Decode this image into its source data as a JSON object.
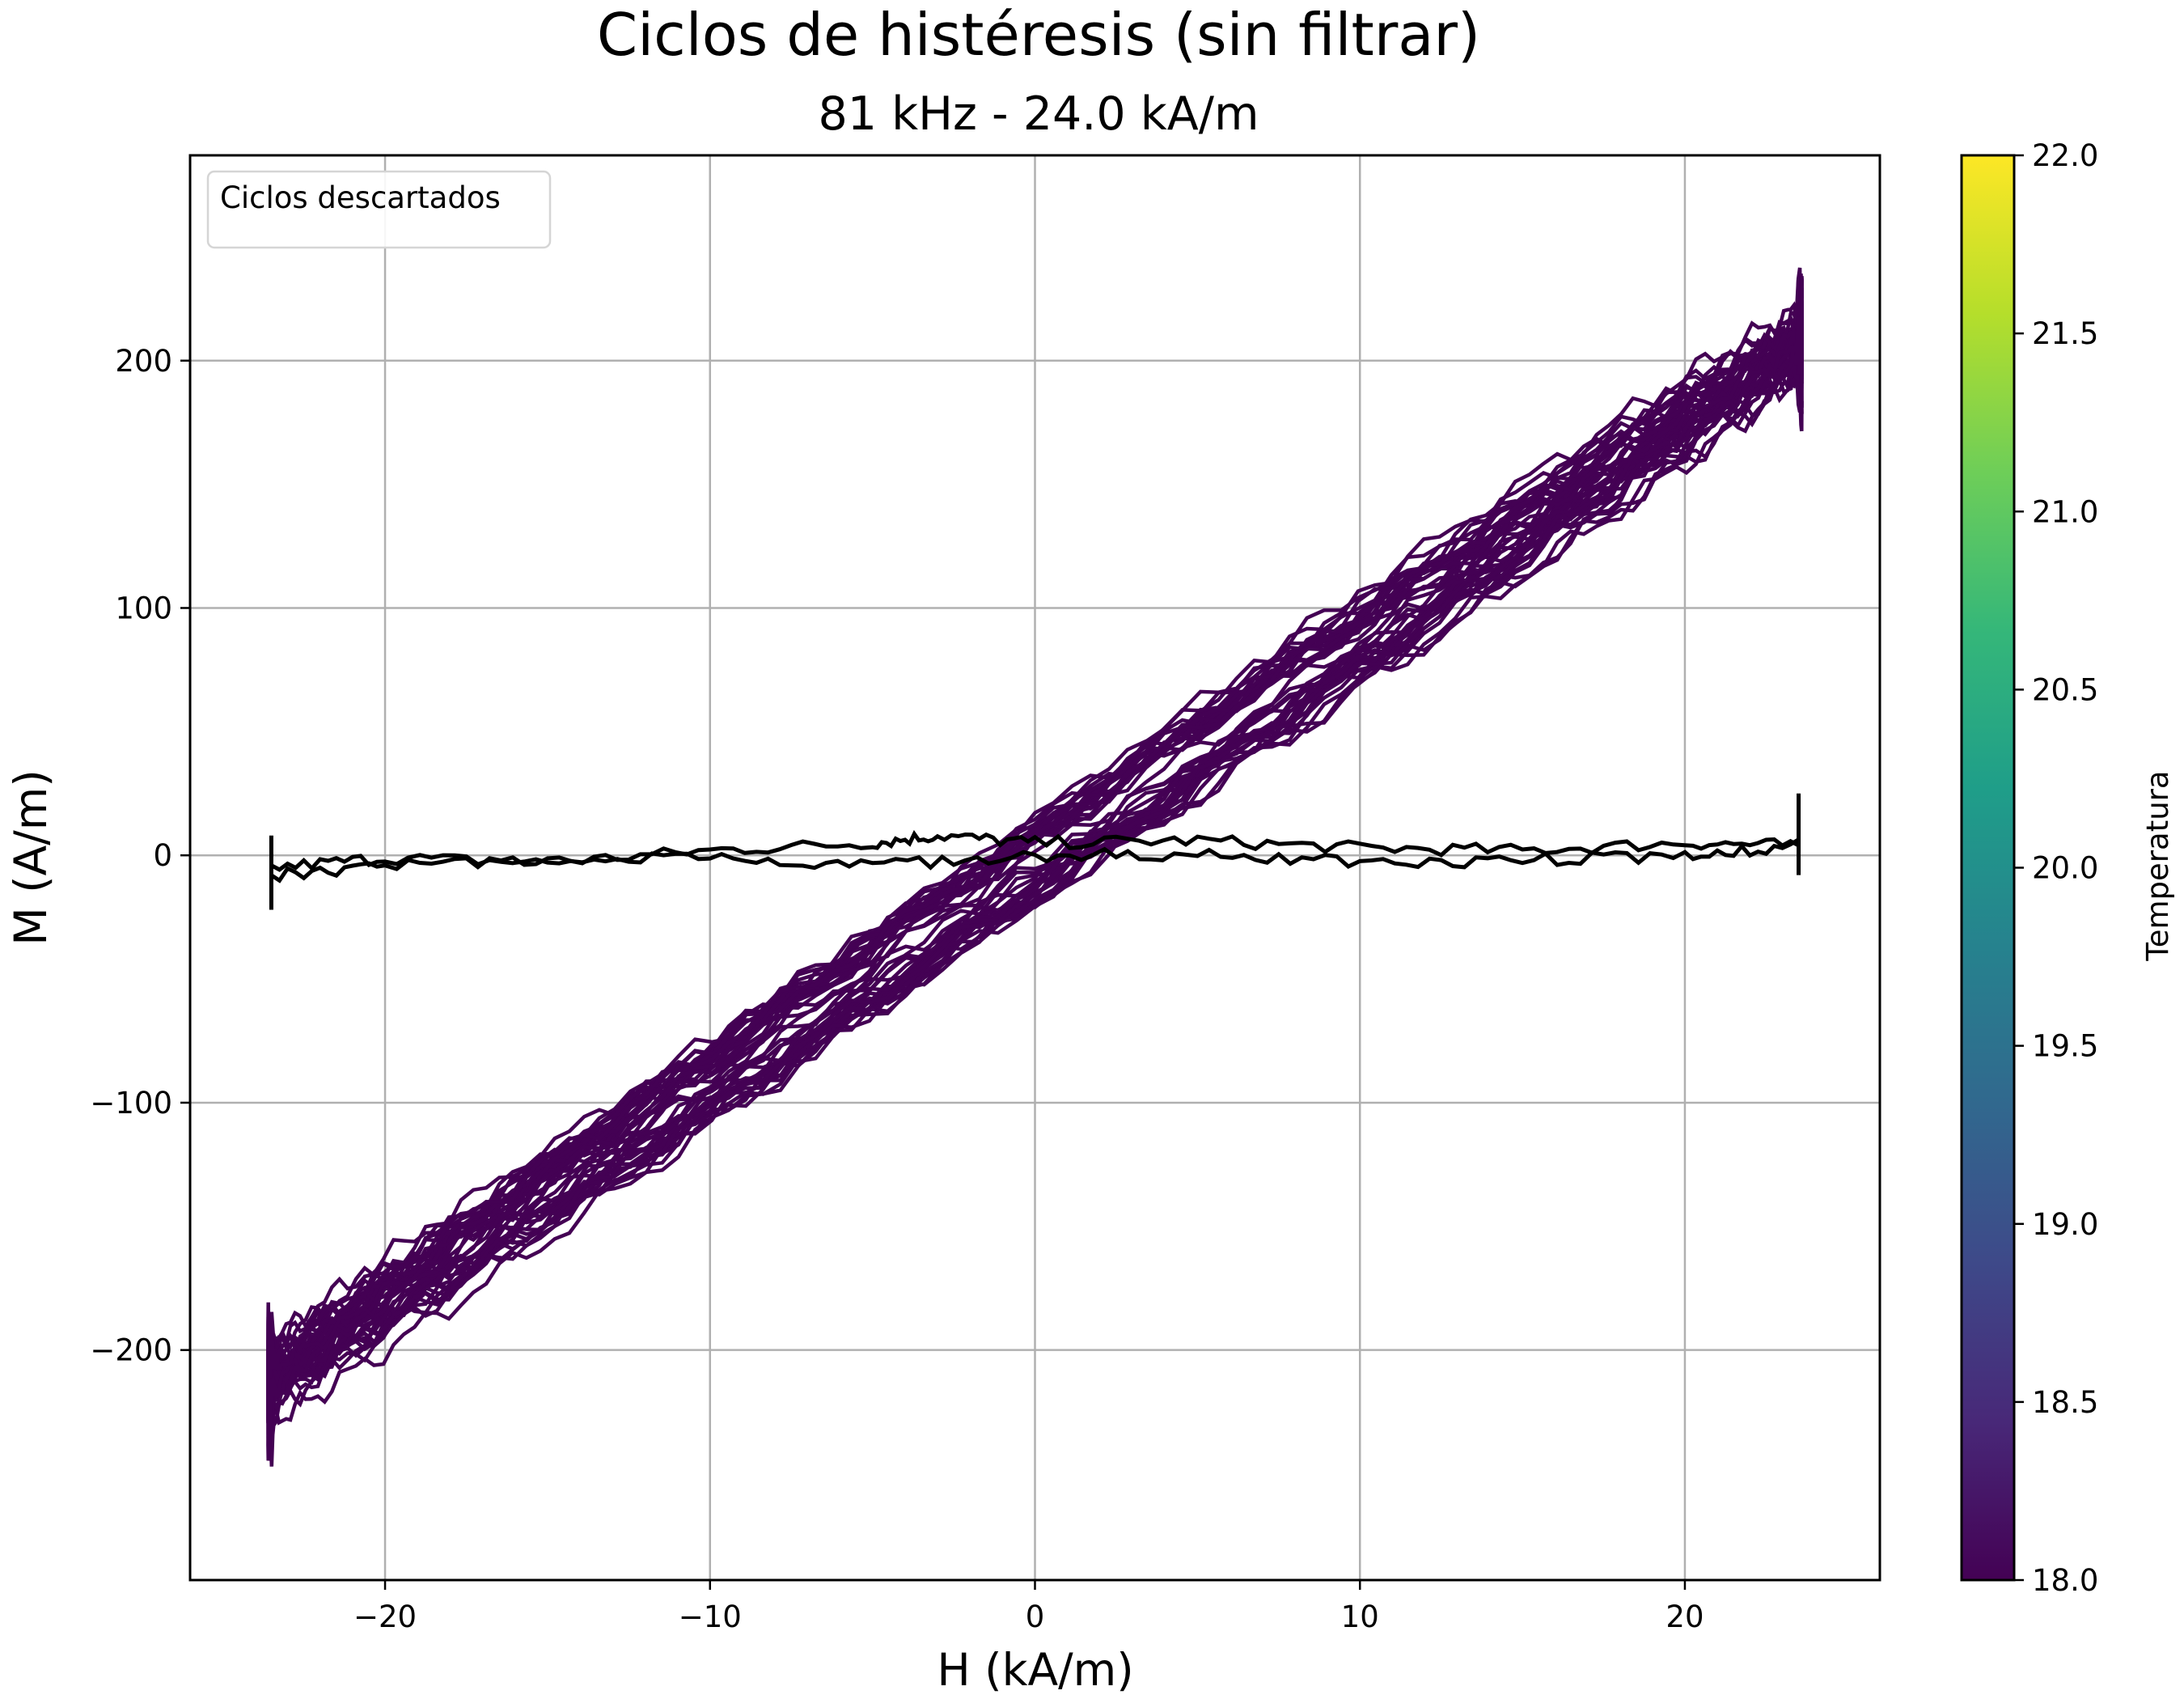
{
  "chart_data": {
    "type": "line",
    "title": "Ciclos de histéresis (sin filtrar)",
    "subtitle": "81 kHz - 24.0 kA/m",
    "xlabel": "H (kA/m)",
    "ylabel": "M (A/m)",
    "xlim": [
      -26,
      26
    ],
    "ylim": [
      -293,
      283
    ],
    "x_ticks": [
      -20,
      -10,
      0,
      10,
      20
    ],
    "x_tick_labels": [
      "−20",
      "−10",
      "0",
      "10",
      "20"
    ],
    "y_ticks": [
      -200,
      -100,
      0,
      100,
      200
    ],
    "y_tick_labels": [
      "−200",
      "−100",
      "0",
      "100",
      "200"
    ],
    "grid": true,
    "legend": {
      "position": "top-left",
      "entries": [
        "Ciclos descartados"
      ]
    },
    "colorbar": {
      "label": "Temperatura",
      "range": [
        18.0,
        22.0
      ],
      "ticks": [
        18.0,
        18.5,
        19.0,
        19.5,
        20.0,
        20.5,
        21.0,
        21.5,
        22.0
      ],
      "tick_labels": [
        "18.0",
        "18.5",
        "19.0",
        "19.5",
        "20.0",
        "20.5",
        "21.0",
        "21.5",
        "22.0"
      ],
      "colormap": "viridis"
    },
    "series": [
      {
        "kind": "accepted-cycles",
        "color": "#440154",
        "count_approx": 20,
        "H_amplitude": 23.6,
        "M_at_Hmax": 210,
        "M_at_Hmin": -215,
        "remanence_half_width": 10
      },
      {
        "kind": "discarded-cycle",
        "name": "Ciclos descartados",
        "color": "#000000",
        "upper_branch": {
          "x": [
            -23.5,
            -20,
            -15,
            -10,
            -5,
            -3,
            0,
            5,
            10,
            15,
            20,
            23.5
          ],
          "y": [
            -5,
            -1,
            -3,
            2,
            5,
            8,
            5,
            6,
            3,
            2,
            5,
            4
          ]
        },
        "lower_branch": {
          "x": [
            23.5,
            20,
            15,
            10,
            5,
            0,
            -5,
            -10,
            -15,
            -20,
            -23.5
          ],
          "y": [
            4,
            0,
            -2,
            -3,
            0,
            0,
            -4,
            0,
            -3,
            -4,
            -8
          ]
        }
      }
    ]
  }
}
